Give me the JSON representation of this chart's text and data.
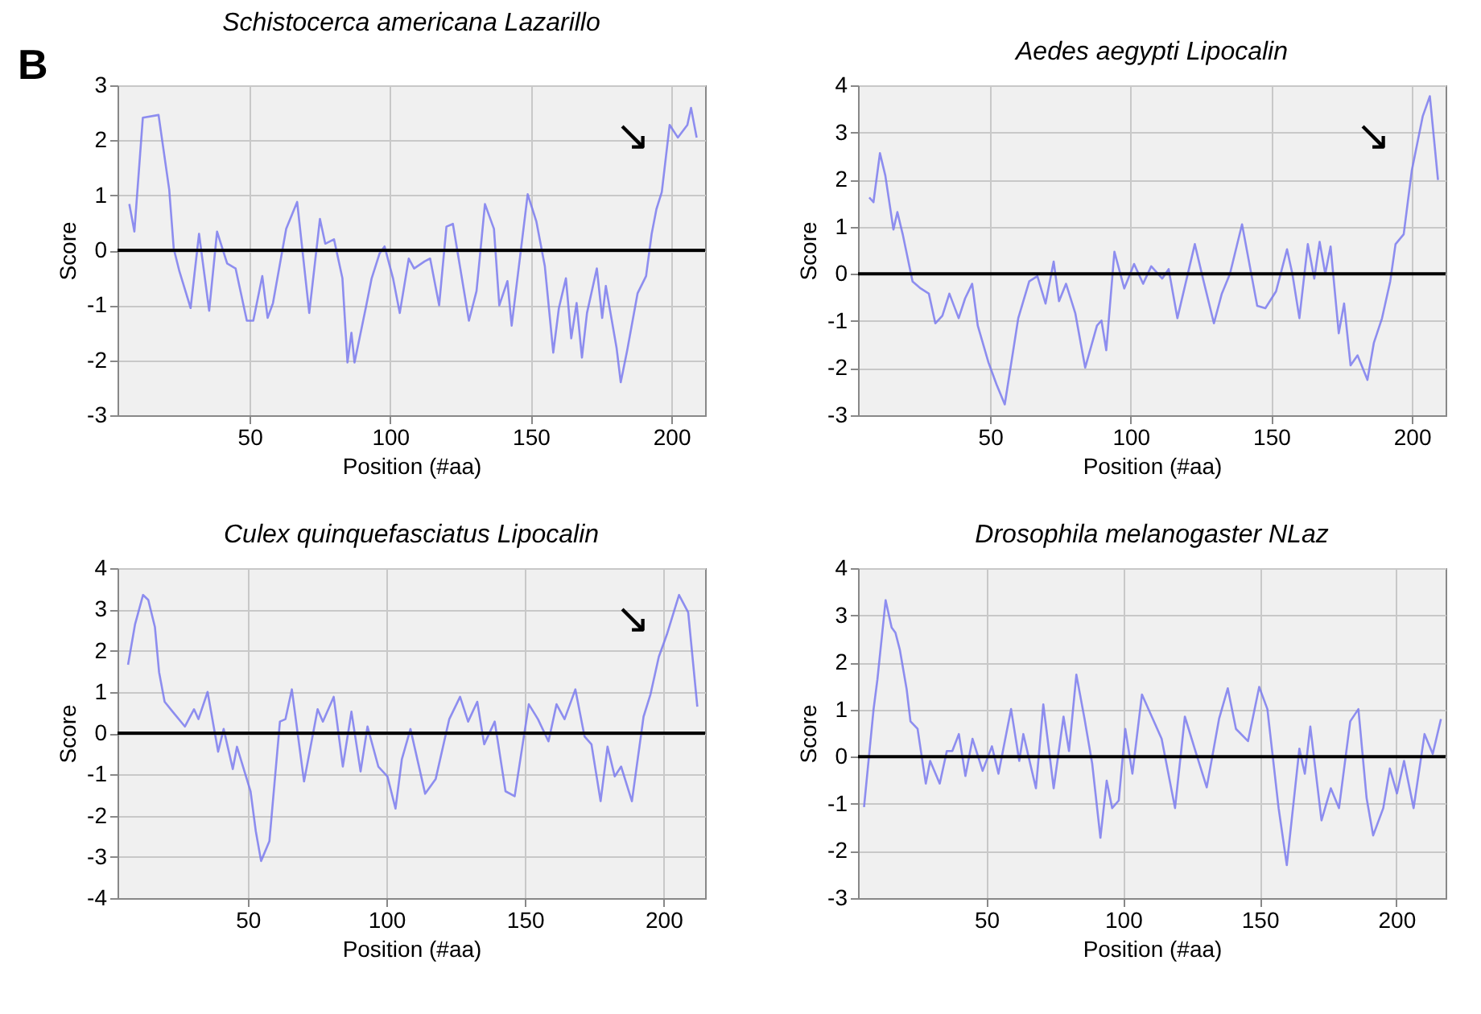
{
  "chart_data": [
    {
      "type": "line",
      "title": "Schistocerca americana Lazarillo",
      "xlabel": "Position (#aa)",
      "ylabel": "Score",
      "xlim": [
        3,
        212
      ],
      "ylim": [
        -3,
        3
      ],
      "xticks": [
        50,
        100,
        150,
        200
      ],
      "yticks": [
        -3,
        -2,
        -1,
        0,
        1,
        2,
        3
      ],
      "grid": true,
      "ref_lines": [
        {
          "axis": "y",
          "value": 0,
          "color": "#000000"
        }
      ],
      "annotations": [
        "B",
        "↘"
      ],
      "series": [
        {
          "color": "#7b7bef",
          "x": [
            7.2,
            9,
            12,
            17.6,
            21.4,
            23,
            25,
            29,
            32,
            35.6,
            38.4,
            42,
            45,
            49,
            51.3,
            54.5,
            56.4,
            58.3,
            63,
            66.9,
            71.2,
            75,
            76.9,
            80,
            83,
            84.8,
            86.2,
            87.3,
            91.5,
            93.4,
            96.2,
            98,
            101,
            103.4,
            106.6,
            108.5,
            112.3,
            114.2,
            117.4,
            120,
            122.3,
            128,
            130.7,
            133.7,
            136.9,
            138.8,
            141.7,
            143.2,
            148.9,
            152,
            155,
            158,
            160,
            162.5,
            164.4,
            166.3,
            168.2,
            170,
            173.5,
            175.4,
            176.7,
            180.5,
            182,
            184.3,
            188,
            191,
            193,
            194.7,
            196.6,
            199.4,
            202.3,
            205.7,
            207,
            209
          ],
          "values": [
            0.84,
            0.34,
            2.41,
            2.46,
            1.1,
            0.03,
            -0.38,
            -1.05,
            0.3,
            -1.1,
            0.34,
            -0.24,
            -0.33,
            -1.28,
            -1.28,
            -0.47,
            -1.23,
            -0.96,
            0.39,
            0.88,
            -1.14,
            0.57,
            0.12,
            0.2,
            -0.51,
            -2.04,
            -1.5,
            -2.04,
            -1.0,
            -0.51,
            -0.06,
            0.07,
            -0.51,
            -1.14,
            -0.15,
            -0.33,
            -0.2,
            -0.15,
            -1.0,
            0.43,
            0.48,
            -1.28,
            -0.74,
            0.84,
            0.39,
            -1.0,
            -0.56,
            -1.37,
            1.02,
            0.52,
            -0.29,
            -1.86,
            -1.05,
            -0.51,
            -1.6,
            -0.96,
            -1.95,
            -1.14,
            -0.33,
            -1.23,
            -0.65,
            -1.77,
            -2.4,
            -1.82,
            -0.78,
            -0.47,
            0.3,
            0.75,
            1.06,
            2.28,
            2.05,
            2.28,
            2.59,
            2.05
          ]
        }
      ]
    },
    {
      "type": "line",
      "title": "Aedes aegypti Lipocalin",
      "xlabel": "Position (#aa)",
      "ylabel": "Score",
      "xlim": [
        3,
        212
      ],
      "ylim": [
        -3,
        4
      ],
      "xticks": [
        50,
        100,
        150,
        200
      ],
      "yticks": [
        -3,
        -2,
        -1,
        0,
        1,
        2,
        3,
        4
      ],
      "grid": true,
      "ref_lines": [
        {
          "axis": "y",
          "value": 0,
          "color": "#000000"
        }
      ],
      "annotations": [
        "↘"
      ],
      "series": [
        {
          "color": "#7b7bef",
          "x": [
            7,
            8.5,
            10.8,
            12.7,
            15.6,
            17,
            18.9,
            22.4,
            25.3,
            28.2,
            30.5,
            33,
            35.5,
            38.8,
            41.1,
            43.6,
            45.6,
            49.4,
            52.3,
            55.2,
            60,
            63.9,
            66.8,
            69.7,
            72.6,
            74.5,
            77,
            80.3,
            83.8,
            88,
            89.6,
            91.3,
            94.2,
            97.7,
            101.2,
            104.4,
            107.3,
            111.2,
            113.5,
            116.6,
            122.8,
            125.7,
            129.6,
            132.4,
            135.3,
            139.6,
            145,
            147.9,
            151.7,
            155.6,
            157.5,
            160,
            163,
            165.3,
            167.2,
            169.2,
            171.1,
            174,
            175.9,
            178.2,
            180.7,
            184.2,
            186.5,
            189.4,
            192.3,
            194.2,
            197.1,
            200,
            203.9,
            206.4,
            209.3
          ],
          "values": [
            1.62,
            1.52,
            2.56,
            2.09,
            0.94,
            1.31,
            0.84,
            -0.16,
            -0.31,
            -0.42,
            -1.05,
            -0.89,
            -0.42,
            -0.94,
            -0.52,
            -0.21,
            -1.1,
            -1.88,
            -2.35,
            -2.77,
            -0.94,
            -0.16,
            -0.05,
            -0.63,
            0.26,
            -0.58,
            -0.21,
            -0.84,
            -1.99,
            -1.1,
            -0.99,
            -1.62,
            0.47,
            -0.31,
            0.21,
            -0.21,
            0.16,
            -0.1,
            0.1,
            -0.94,
            0.63,
            -0.1,
            -1.05,
            -0.42,
            0,
            1.05,
            -0.68,
            -0.73,
            -0.37,
            0.52,
            0,
            -0.94,
            0.63,
            -0.1,
            0.68,
            0,
            0.58,
            -1.26,
            -0.63,
            -1.94,
            -1.73,
            -2.25,
            -1.46,
            -0.94,
            -0.16,
            0.63,
            0.84,
            2.2,
            3.35,
            3.77,
            1.99
          ]
        }
      ]
    },
    {
      "type": "line",
      "title": "Culex quinquefasciatus Lipocalin",
      "xlabel": "Position (#aa)",
      "ylabel": "Score",
      "xlim": [
        3,
        215
      ],
      "ylim": [
        -4,
        4
      ],
      "xticks": [
        50,
        100,
        150,
        200
      ],
      "yticks": [
        -4,
        -3,
        -2,
        -1,
        0,
        1,
        2,
        3,
        4
      ],
      "grid": true,
      "ref_lines": [
        {
          "axis": "y",
          "value": 0,
          "color": "#000000"
        }
      ],
      "annotations": [
        "↘"
      ],
      "series": [
        {
          "color": "#7b7bef",
          "x": [
            6.8,
            9.3,
            12.2,
            14.1,
            16.5,
            18,
            20,
            22.9,
            27.3,
            30.6,
            32.2,
            35.5,
            39.3,
            41.3,
            44.6,
            46.1,
            51,
            52.9,
            54.8,
            57.8,
            61.6,
            63.6,
            65.9,
            70.3,
            75.2,
            77.1,
            81,
            84.3,
            87.4,
            90.7,
            93.2,
            97.1,
            100.4,
            103.3,
            105.6,
            108.7,
            114,
            117.8,
            122.7,
            126.6,
            129.5,
            132.8,
            135.3,
            139.1,
            143,
            146.3,
            151.4,
            154.7,
            158.5,
            161.4,
            164.3,
            168.2,
            171.5,
            174,
            177.3,
            179.8,
            182.4,
            184.7,
            188.6,
            192.8,
            195.3,
            198.3,
            201.2,
            205.6,
            208.9,
            212.2
          ],
          "values": [
            1.66,
            2.63,
            3.35,
            3.23,
            2.57,
            1.48,
            0.76,
            0.52,
            0.16,
            0.58,
            0.34,
            1.0,
            -0.45,
            0.1,
            -0.87,
            -0.33,
            -1.41,
            -2.38,
            -3.1,
            -2.62,
            0.28,
            0.34,
            1.06,
            -1.17,
            0.58,
            0.28,
            0.88,
            -0.81,
            0.52,
            -0.93,
            0.16,
            -0.81,
            -1.05,
            -1.83,
            -0.63,
            0.1,
            -1.47,
            -1.11,
            0.34,
            0.88,
            0.28,
            0.76,
            -0.27,
            0.28,
            -1.41,
            -1.53,
            0.7,
            0.34,
            -0.2,
            0.7,
            0.34,
            1.06,
            -0.08,
            -0.27,
            -1.65,
            -0.33,
            -1.05,
            -0.81,
            -1.65,
            0.4,
            0.94,
            1.85,
            2.39,
            3.35,
            2.93,
            0.64
          ]
        }
      ]
    },
    {
      "type": "line",
      "title": "Drosophila melanogaster NLaz",
      "xlabel": "Position (#aa)",
      "ylabel": "Score",
      "xlim": [
        3,
        218
      ],
      "ylim": [
        -3,
        4
      ],
      "xticks": [
        50,
        100,
        150,
        200
      ],
      "yticks": [
        -3,
        -2,
        -1,
        0,
        1,
        2,
        3,
        4
      ],
      "grid": true,
      "ref_lines": [
        {
          "axis": "y",
          "value": 0,
          "color": "#000000"
        }
      ],
      "series": [
        {
          "color": "#7b7bef",
          "x": [
            5.2,
            8.7,
            10.1,
            13.1,
            15.3,
            16.7,
            18.3,
            20.8,
            22.2,
            24.8,
            27.8,
            29.4,
            32.9,
            35.5,
            37.5,
            39.9,
            42.3,
            44.9,
            48.6,
            52,
            54.4,
            59,
            62,
            63.5,
            68.1,
            70.8,
            74.6,
            78.2,
            80.2,
            82.9,
            85.9,
            88.7,
            91.7,
            94,
            96,
            98.4,
            100.8,
            103.4,
            106.9,
            110.5,
            114.1,
            119,
            122.6,
            126.2,
            130.6,
            135.1,
            138.3,
            141.3,
            145.7,
            149.8,
            152.8,
            156.9,
            159.9,
            164.5,
            166.5,
            168.5,
            172.6,
            176,
            179,
            183.1,
            186.1,
            189.1,
            191.5,
            195.2,
            197.6,
            200.2,
            202.8,
            206.3,
            210.3,
            213.3,
            216.3
          ],
          "values": [
            -1.07,
            1.01,
            1.64,
            3.32,
            2.74,
            2.63,
            2.27,
            1.43,
            0.75,
            0.59,
            -0.57,
            -0.09,
            -0.57,
            0.12,
            0.12,
            0.48,
            -0.41,
            0.38,
            -0.3,
            0.22,
            -0.36,
            1.01,
            -0.09,
            0.48,
            -0.67,
            1.11,
            -0.67,
            0.85,
            0.12,
            1.74,
            0.8,
            -0.15,
            -1.72,
            -0.51,
            -1.09,
            -0.93,
            0.59,
            -0.36,
            1.32,
            0.85,
            0.38,
            -1.09,
            0.85,
            0.17,
            -0.65,
            0.8,
            1.45,
            0.59,
            0.33,
            1.48,
            1.01,
            -1.09,
            -2.3,
            0.17,
            -0.36,
            0.64,
            -1.35,
            -0.67,
            -1.09,
            0.75,
            1.01,
            -0.88,
            -1.67,
            -1.09,
            -0.25,
            -0.78,
            -0.09,
            -1.09,
            0.48,
            0.06,
            0.8
          ]
        }
      ]
    }
  ]
}
